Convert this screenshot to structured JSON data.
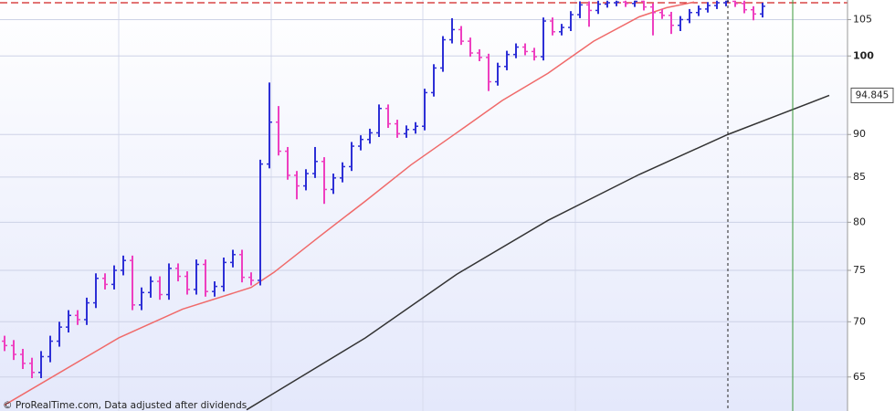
{
  "chart_data": {
    "type": "ohlc",
    "open": [
      68.2,
      67.8,
      67.0,
      66.2,
      65.4,
      66.8,
      68.2,
      69.5,
      70.6,
      70.2,
      71.8,
      74.2,
      73.6,
      75.0,
      76.0,
      71.6,
      72.8,
      73.9,
      72.6,
      75.2,
      74.4,
      73.1,
      75.6,
      72.9,
      73.4,
      75.8,
      76.6,
      74.3,
      74.0,
      86.5,
      91.5,
      88.0,
      85.2,
      84.0,
      85.4,
      86.8,
      83.6,
      84.9,
      86.2,
      88.6,
      89.4,
      90.2,
      93.2,
      91.3,
      90.1,
      90.6,
      91.0,
      95.2,
      98.4,
      102.2,
      103.6,
      102.0,
      100.4,
      99.8,
      96.6,
      98.6,
      100.2,
      101.2,
      100.6,
      99.9,
      104.8,
      103.3,
      103.9,
      105.7,
      107.1,
      106.3,
      107.2,
      107.4,
      107.5,
      107.3,
      107.6,
      106.8,
      106.0,
      105.6,
      104.2,
      105.0,
      106.0,
      106.5,
      107.0,
      107.4,
      107.6,
      107.3,
      106.4,
      105.8
    ],
    "high": [
      68.7,
      68.3,
      67.5,
      66.7,
      67.3,
      68.7,
      70.0,
      71.1,
      71.1,
      72.3,
      74.7,
      74.7,
      75.5,
      76.5,
      76.5,
      73.3,
      74.4,
      74.4,
      75.7,
      75.7,
      74.9,
      76.1,
      76.1,
      73.9,
      76.3,
      77.1,
      77.1,
      74.8,
      87.0,
      96.5,
      93.5,
      88.5,
      85.7,
      85.9,
      88.5,
      87.3,
      85.4,
      86.7,
      89.1,
      89.9,
      90.7,
      93.7,
      93.7,
      91.8,
      91.1,
      91.5,
      95.7,
      98.9,
      102.7,
      105.2,
      104.1,
      102.5,
      100.9,
      100.3,
      99.1,
      100.7,
      101.7,
      101.7,
      101.1,
      105.3,
      105.3,
      104.4,
      106.2,
      107.6,
      107.6,
      107.7,
      107.7,
      107.7,
      107.7,
      107.7,
      107.7,
      107.3,
      106.5,
      106.1,
      105.5,
      106.5,
      107.0,
      107.5,
      107.7,
      107.7,
      107.7,
      107.7,
      106.9,
      107.4
    ],
    "low": [
      67.3,
      66.5,
      65.7,
      64.9,
      64.9,
      66.3,
      67.7,
      69.0,
      69.7,
      69.7,
      71.3,
      73.1,
      73.1,
      74.5,
      71.1,
      71.1,
      72.3,
      72.1,
      72.1,
      73.9,
      72.6,
      72.6,
      72.4,
      72.4,
      72.9,
      75.3,
      73.8,
      73.5,
      73.5,
      86.0,
      87.5,
      84.7,
      82.5,
      83.5,
      84.9,
      82.0,
      83.1,
      84.4,
      85.7,
      88.1,
      88.9,
      89.7,
      90.8,
      89.6,
      89.6,
      90.1,
      90.5,
      94.7,
      97.9,
      101.7,
      101.5,
      99.9,
      99.3,
      95.4,
      96.1,
      98.1,
      99.7,
      100.1,
      99.4,
      99.4,
      102.8,
      102.8,
      103.4,
      105.2,
      104.0,
      105.8,
      106.7,
      106.9,
      106.8,
      106.8,
      106.3,
      102.8,
      105.1,
      103.0,
      103.4,
      104.5,
      105.5,
      106.0,
      106.5,
      106.9,
      106.8,
      105.9,
      104.9,
      105.3
    ],
    "close": [
      67.8,
      67.0,
      66.2,
      65.4,
      66.8,
      68.2,
      69.5,
      70.6,
      70.2,
      71.8,
      74.2,
      73.6,
      75.0,
      76.0,
      71.6,
      72.8,
      73.9,
      72.6,
      75.2,
      74.4,
      73.1,
      75.6,
      72.9,
      73.4,
      75.8,
      76.6,
      74.3,
      74.0,
      86.5,
      91.5,
      88.0,
      85.2,
      84.0,
      85.4,
      86.8,
      83.6,
      84.9,
      86.2,
      88.6,
      89.4,
      90.2,
      93.2,
      91.3,
      90.1,
      90.6,
      91.0,
      95.2,
      98.4,
      102.2,
      103.6,
      102.0,
      100.4,
      99.8,
      96.6,
      98.6,
      100.2,
      101.2,
      100.6,
      99.9,
      104.8,
      103.3,
      103.9,
      105.7,
      107.1,
      106.3,
      107.2,
      107.4,
      107.5,
      107.3,
      107.6,
      106.8,
      106.0,
      105.6,
      104.2,
      105.0,
      106.0,
      106.5,
      107.0,
      107.4,
      107.6,
      107.3,
      106.4,
      105.8,
      106.9
    ],
    "up_color": "#2d2fd6",
    "down_color": "#ee3fc0",
    "lines": [
      {
        "color": "#f06a6a",
        "x": [
          0,
          12.5,
          19.5,
          27,
          29.5,
          34.5,
          39.5,
          44.5,
          49.5,
          54.5,
          59.5,
          64.5,
          69.5,
          72.5,
          75.5
        ],
        "values": [
          62.6,
          68.5,
          71.2,
          73.3,
          74.8,
          78.5,
          82.3,
          86.4,
          90.2,
          94.2,
          97.7,
          102.0,
          105.4,
          106.7,
          107.5
        ]
      },
      {
        "color": "#333333",
        "x": [
          26.5,
          29.5,
          39.5,
          49.5,
          59.5,
          69.5,
          79.2,
          90.3
        ],
        "values": [
          62.2,
          63.6,
          68.5,
          74.6,
          80.2,
          85.3,
          90.0,
          94.845
        ]
      }
    ],
    "last_value_label": 94.845,
    "hline": 107.4,
    "hline_color": "#d02020",
    "xlim": [
      -0.5,
      92.3
    ],
    "ylim": [
      62.1,
      107.8
    ],
    "log_scale": true,
    "yticks": [
      65,
      70,
      75,
      80,
      85,
      90,
      100,
      105
    ],
    "grid": true,
    "footnote": "© ProRealTime.com, Data adjusted after dividends"
  }
}
